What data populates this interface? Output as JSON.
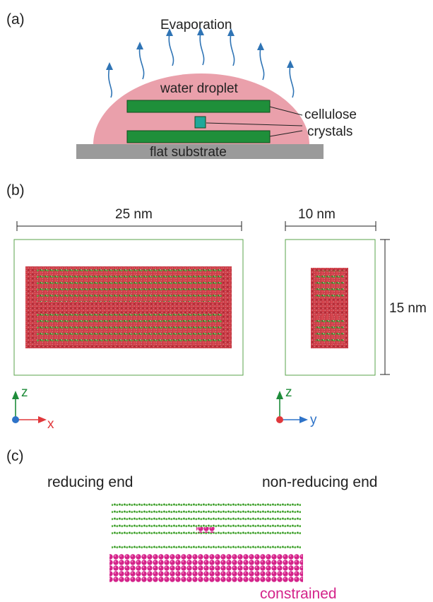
{
  "panels": {
    "a": {
      "label": "(a)",
      "evaporation": "Evaporation",
      "droplet": "water droplet",
      "crystals_line1": "cellulose",
      "crystals_line2": "crystals",
      "substrate": "flat substrate"
    },
    "b": {
      "label": "(b)",
      "width_side": "25 nm",
      "width_end": "10 nm",
      "height": "15 nm",
      "axes_left": {
        "vertical": "z",
        "horizontal": "x"
      },
      "axes_right": {
        "vertical": "z",
        "horizontal": "y"
      }
    },
    "c": {
      "label": "(c)",
      "left_end": "reducing end",
      "right_end": "non-reducing end",
      "constrained": "constrained"
    }
  },
  "colors": {
    "droplet": "#eaa0ab",
    "crystal": "#1f8f3a",
    "crystal_edge": "#0e4d1e",
    "crystal_end": "#1fa89a",
    "substrate": "#9a9a9a",
    "arrow": "#2f74b5",
    "water": "#c83040",
    "chain": "#3f9a2e",
    "axis_z": "#1e8c3a",
    "axis_x": "#e0383c",
    "axis_y": "#2e73c8",
    "constrained": "#d4238a",
    "box": "#5aa34b"
  }
}
